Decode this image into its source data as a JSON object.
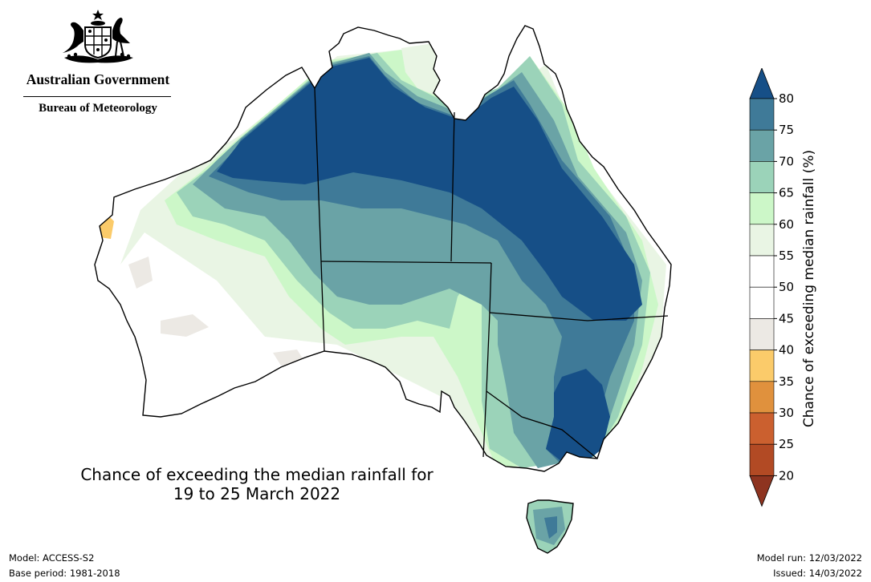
{
  "header": {
    "government": "Australian Government",
    "bureau": "Bureau of Meteorology"
  },
  "map": {
    "caption_line1": "Chance of exceeding the median rainfall for",
    "caption_line2": "19 to 25 March 2022"
  },
  "colorbar": {
    "title": "Chance of exceeding median rainfall (%)",
    "ticks": [
      "80",
      "75",
      "70",
      "65",
      "60",
      "55",
      "50",
      "45",
      "40",
      "35",
      "30",
      "25",
      "20"
    ],
    "bins": [
      {
        "range": "above 80",
        "color": "#164f87"
      },
      {
        "range": "75-80",
        "color": "#3f7a98"
      },
      {
        "range": "70-75",
        "color": "#6aa3a6"
      },
      {
        "range": "65-70",
        "color": "#9bd3b9"
      },
      {
        "range": "60-65",
        "color": "#ccf7c8"
      },
      {
        "range": "55-60",
        "color": "#e9f5e4"
      },
      {
        "range": "50-55",
        "color": "#ffffff"
      },
      {
        "range": "45-50",
        "color": "#ffffff"
      },
      {
        "range": "40-45",
        "color": "#ece9e4"
      },
      {
        "range": "35-40",
        "color": "#fbcb6a"
      },
      {
        "range": "30-35",
        "color": "#e0913d"
      },
      {
        "range": "25-30",
        "color": "#cb602f"
      },
      {
        "range": "20-25",
        "color": "#b24a24"
      },
      {
        "range": "below 20",
        "color": "#8e3420"
      }
    ]
  },
  "footer": {
    "model": "Model: ACCESS-S2",
    "base_period": "Base period: 1981-2018",
    "model_run": "Model run: 12/03/2022",
    "issued": "Issued: 14/03/2022"
  }
}
